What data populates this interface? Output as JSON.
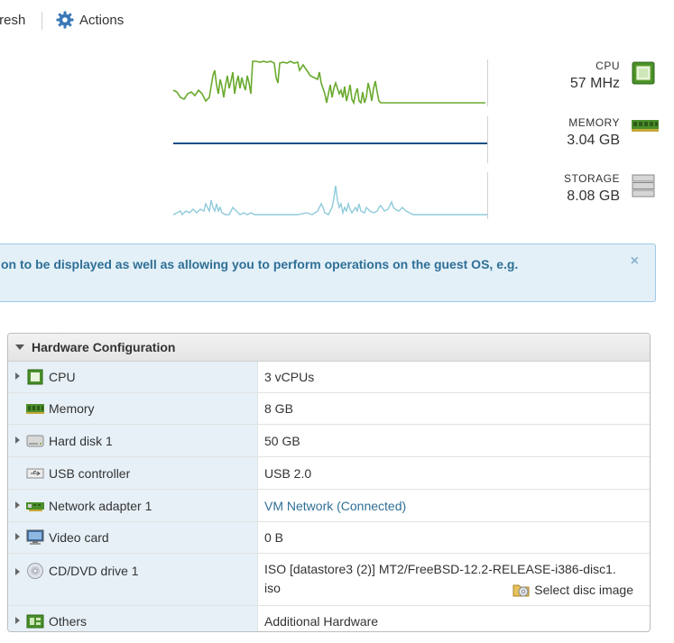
{
  "toolbar": {
    "refresh_label": "fresh",
    "actions_label": "Actions"
  },
  "metrics": {
    "cpu": {
      "label": "CPU",
      "value": "57 MHz"
    },
    "memory": {
      "label": "MEMORY",
      "value": "3.04 GB"
    },
    "storage": {
      "label": "STORAGE",
      "value": "8.08 GB"
    }
  },
  "colors": {
    "cpu_line": "#6aaa2e",
    "memory_line": "#1c4f86",
    "storage_line": "#8fcbdc",
    "banner_bg": "#e3f0f8",
    "banner_text": "#2f6f96",
    "link": "#2f6f96"
  },
  "banner": {
    "text": "on to be displayed as well as allowing you to perform operations on the guest OS, e.g.",
    "close_glyph": "×"
  },
  "hardware": {
    "title": "Hardware Configuration",
    "rows": [
      {
        "label": "CPU",
        "value": "3 vCPUs",
        "icon": "cpu-icon"
      },
      {
        "label": "Memory",
        "value": "8 GB",
        "icon": "memory-icon"
      },
      {
        "label": "Hard disk 1",
        "value": "50 GB",
        "icon": "hard-disk-icon"
      },
      {
        "label": "USB controller",
        "value": "USB 2.0",
        "icon": "usb-icon"
      },
      {
        "label": "Network adapter 1",
        "value": "VM Network (Connected)",
        "icon": "network-adapter-icon"
      },
      {
        "label": "Video card",
        "value": "0 B",
        "icon": "video-card-icon"
      },
      {
        "label": "CD/DVD drive 1",
        "value_line1": "ISO [datastore3 (2)] MT2/FreeBSD-12.2-RELEASE-i386-disc1.",
        "value_line2": "iso",
        "action": "Select disc image",
        "icon": "cd-dvd-icon"
      },
      {
        "label": "Others",
        "value": "Additional Hardware",
        "icon": "others-icon"
      }
    ]
  }
}
